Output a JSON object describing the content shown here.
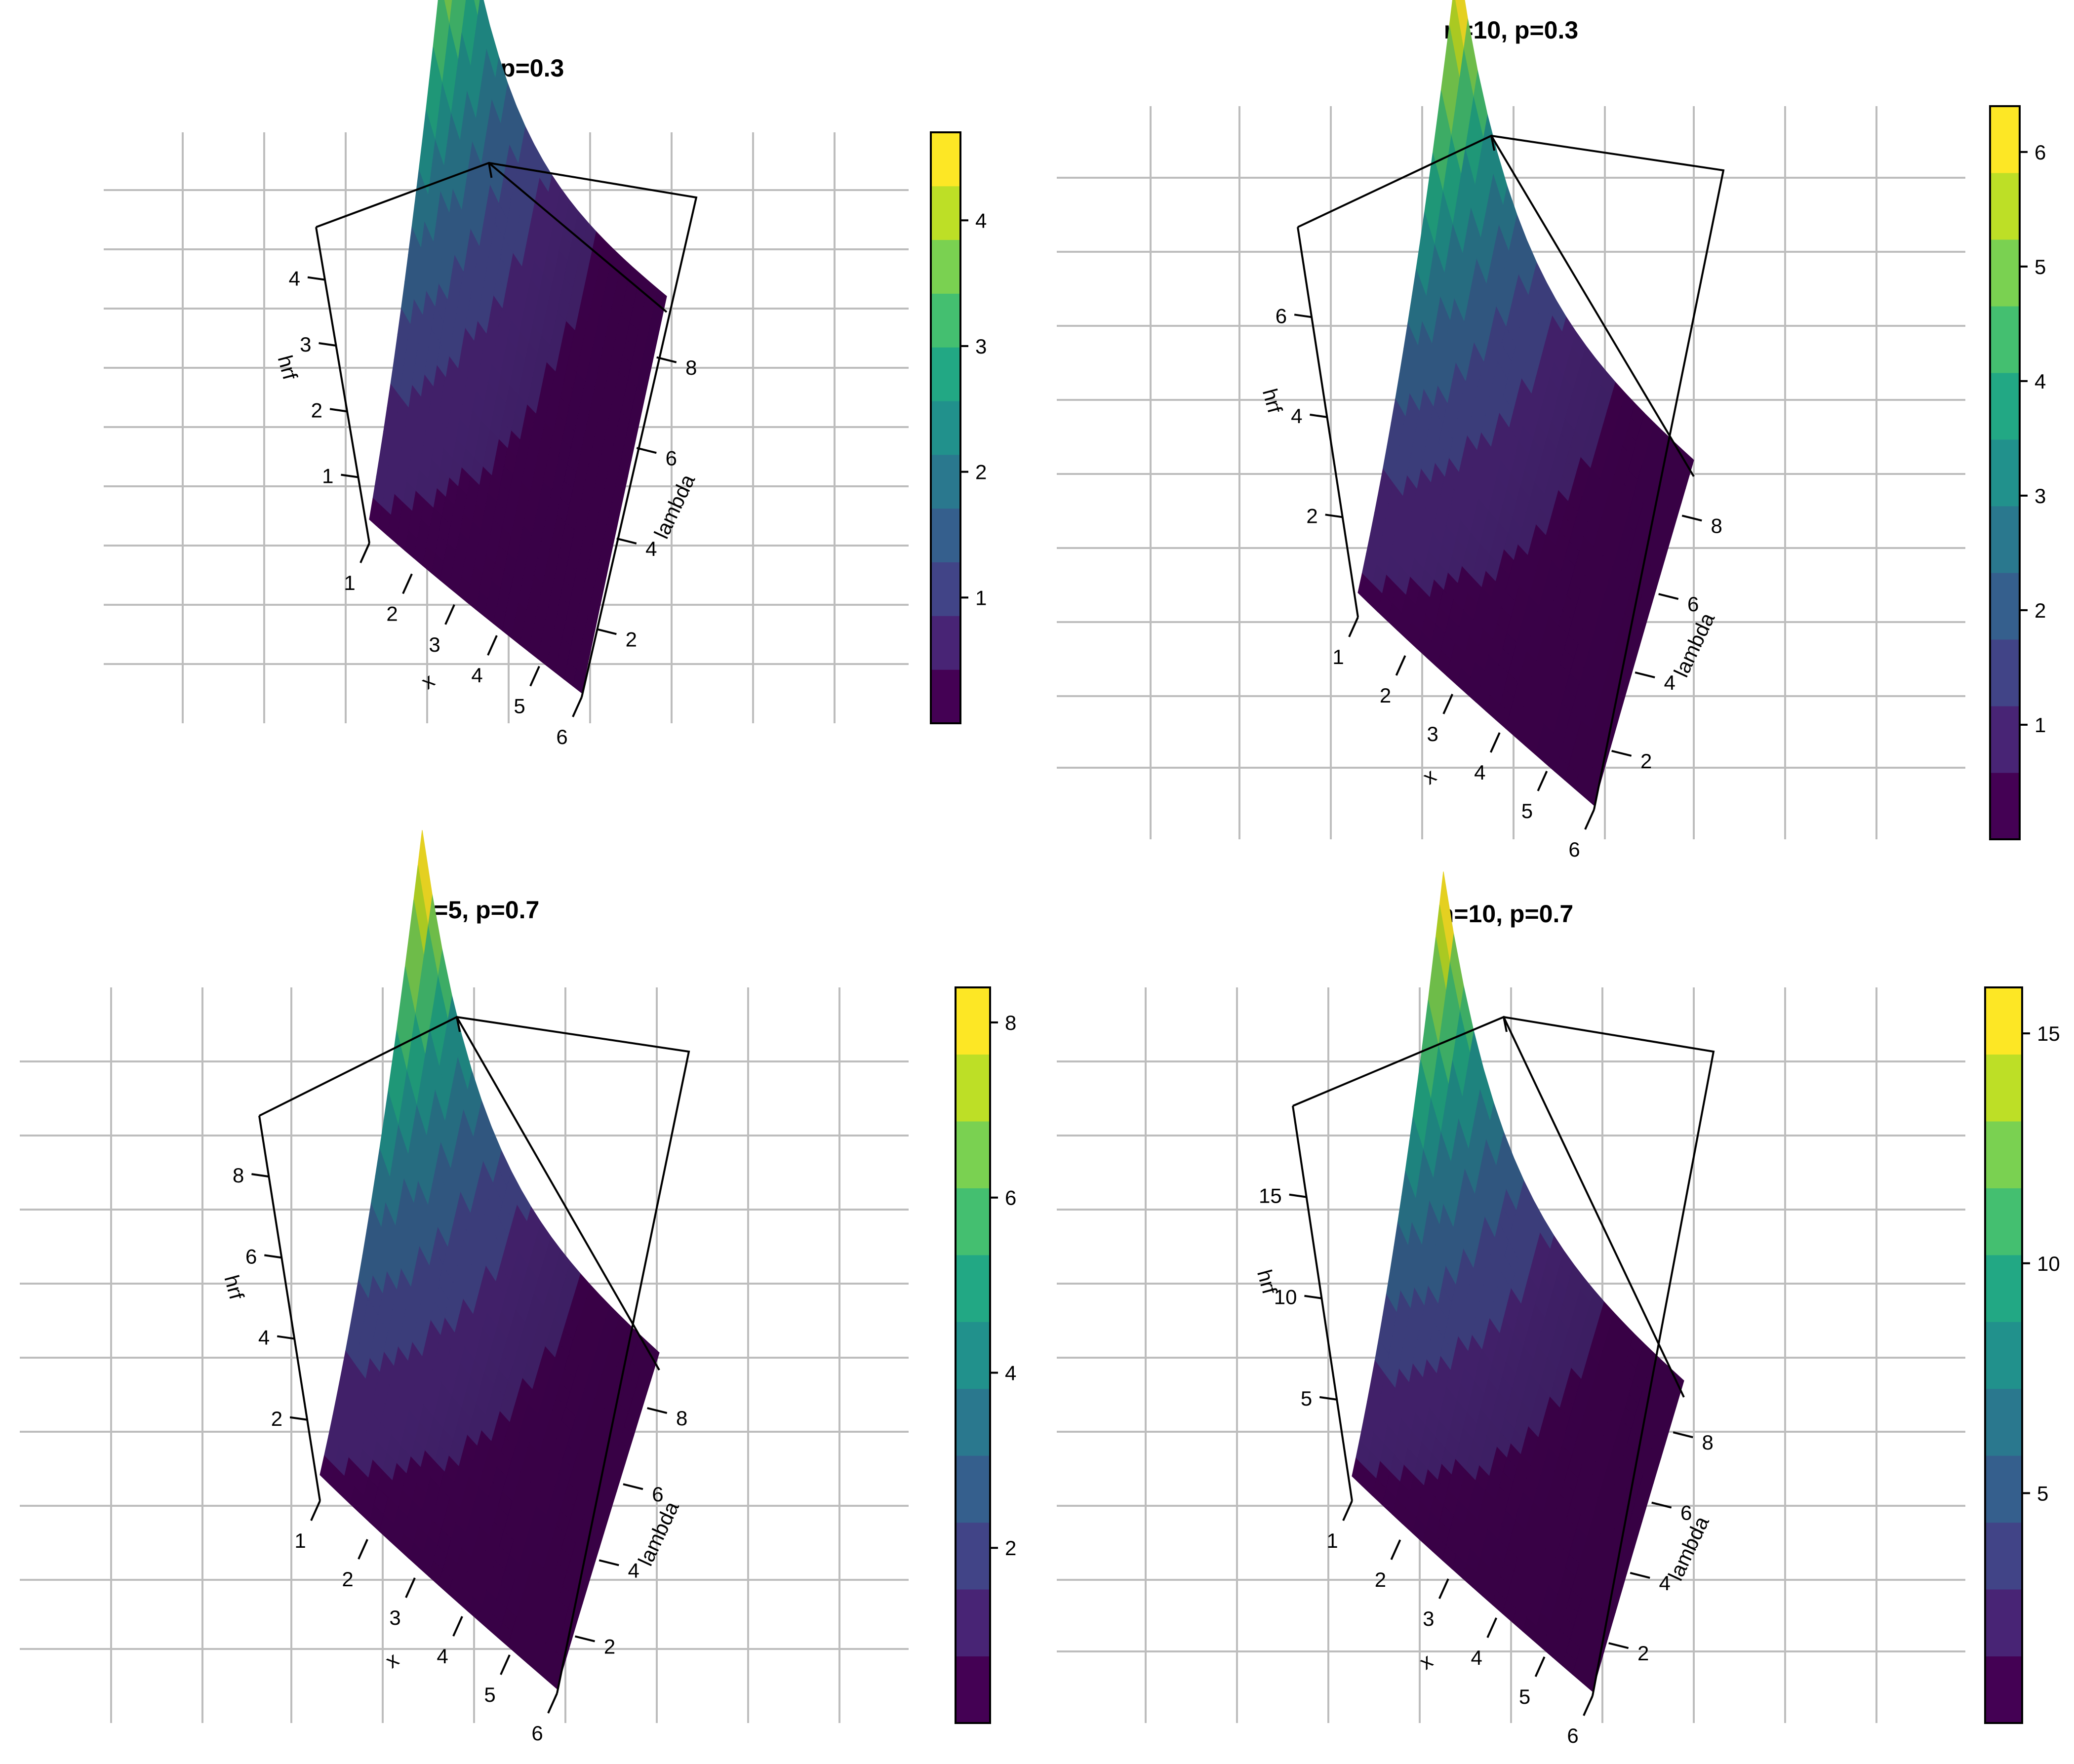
{
  "chart_data": [
    {
      "type": "surface3d",
      "title": "n=5, p=0.3",
      "xlabel": "x",
      "ylabel": "lambda",
      "zlabel": "hrf",
      "x_ticks": [
        "1",
        "2",
        "3",
        "4",
        "5",
        "6"
      ],
      "y_ticks": [
        "2",
        "4",
        "6",
        "8"
      ],
      "z_ticks": [
        "1",
        "2",
        "3",
        "4"
      ],
      "x_range": [
        1,
        6
      ],
      "y_range": [
        0.5,
        9
      ],
      "z_range": [
        0,
        4.8
      ],
      "z_peak": 4.7,
      "colorbar_ticks": [
        "1",
        "2",
        "3",
        "4"
      ],
      "colorbar_range": [
        0,
        4.7
      ],
      "colorscale": [
        "#440154",
        "#482475",
        "#414487",
        "#355f8d",
        "#2a788e",
        "#21918c",
        "#22a884",
        "#44bf70",
        "#7ad151",
        "#bddf26",
        "#fde725"
      ]
    },
    {
      "type": "surface3d",
      "title": "n=10, p=0.3",
      "xlabel": "x",
      "ylabel": "lambda",
      "zlabel": "hrf",
      "x_ticks": [
        "1",
        "2",
        "3",
        "4",
        "5",
        "6"
      ],
      "y_ticks": [
        "2",
        "4",
        "6",
        "8"
      ],
      "z_ticks": [
        "2",
        "4",
        "6"
      ],
      "x_range": [
        1,
        6
      ],
      "y_range": [
        0.5,
        9
      ],
      "z_range": [
        0,
        7.8
      ],
      "z_peak": 6.4,
      "colorbar_ticks": [
        "1",
        "2",
        "3",
        "4",
        "5",
        "6"
      ],
      "colorbar_range": [
        0,
        6.4
      ],
      "colorscale": [
        "#440154",
        "#482475",
        "#414487",
        "#355f8d",
        "#2a788e",
        "#21918c",
        "#22a884",
        "#44bf70",
        "#7ad151",
        "#bddf26",
        "#fde725"
      ]
    },
    {
      "type": "surface3d",
      "title": "n=5, p=0.7",
      "xlabel": "x",
      "ylabel": "lambda",
      "zlabel": "hrf",
      "x_ticks": [
        "1",
        "2",
        "3",
        "4",
        "5",
        "6"
      ],
      "y_ticks": [
        "2",
        "4",
        "6",
        "8"
      ],
      "z_ticks": [
        "2",
        "4",
        "6",
        "8"
      ],
      "x_range": [
        1,
        6
      ],
      "y_range": [
        0.5,
        9
      ],
      "z_range": [
        0,
        9.5
      ],
      "z_peak": 8.4,
      "colorbar_ticks": [
        "2",
        "4",
        "6",
        "8"
      ],
      "colorbar_range": [
        0,
        8.4
      ],
      "colorscale": [
        "#440154",
        "#482475",
        "#414487",
        "#355f8d",
        "#2a788e",
        "#21918c",
        "#22a884",
        "#44bf70",
        "#7ad151",
        "#bddf26",
        "#fde725"
      ]
    },
    {
      "type": "surface3d",
      "title": "n=10, p=0.7",
      "xlabel": "x",
      "ylabel": "lambda",
      "zlabel": "hrf",
      "x_ticks": [
        "1",
        "2",
        "3",
        "4",
        "5",
        "6"
      ],
      "y_ticks": [
        "2",
        "4",
        "6",
        "8"
      ],
      "z_ticks": [
        "5",
        "10",
        "15"
      ],
      "x_range": [
        1,
        6
      ],
      "y_range": [
        0.5,
        9
      ],
      "z_range": [
        0,
        19.5
      ],
      "z_peak": 16,
      "colorbar_ticks": [
        "5",
        "10",
        "15"
      ],
      "colorbar_range": [
        0,
        16
      ],
      "colorscale": [
        "#440154",
        "#482475",
        "#414487",
        "#355f8d",
        "#2a788e",
        "#21918c",
        "#22a884",
        "#44bf70",
        "#7ad151",
        "#bddf26",
        "#fde725"
      ]
    }
  ]
}
